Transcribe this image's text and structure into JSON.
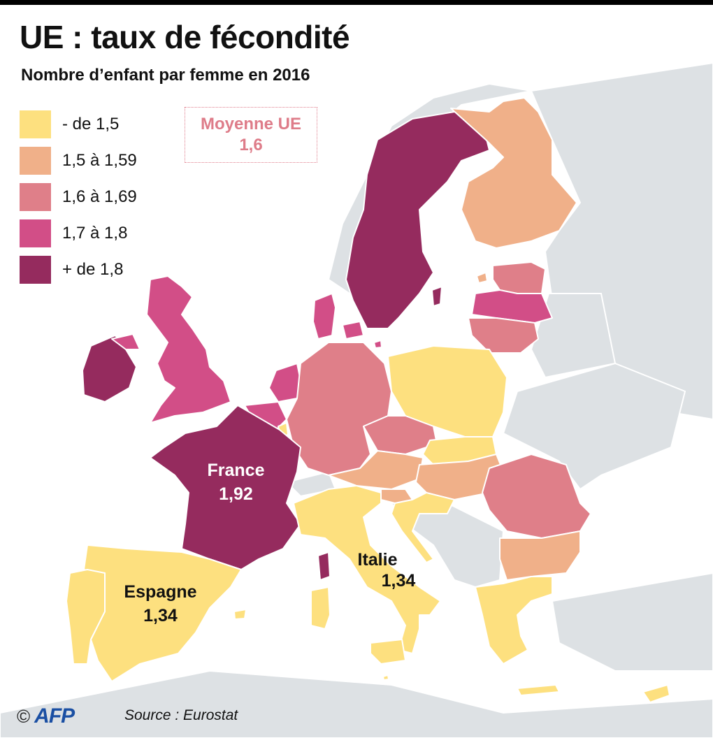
{
  "title": "UE : taux de fécondité",
  "subtitle": "Nombre d’enfant par femme en 2016",
  "legend": [
    {
      "label": "- de 1,5",
      "color": "#fde07f"
    },
    {
      "label": "1,5 à 1,59",
      "color": "#f0b089"
    },
    {
      "label": "1,6 à 1,69",
      "color": "#df7f89"
    },
    {
      "label": "1,7 à 1,8",
      "color": "#d24e87"
    },
    {
      "label": "+  de 1,8",
      "color": "#952b5e"
    }
  ],
  "eu_average": {
    "label": "Moyenne UE",
    "value": "1,6"
  },
  "map_labels": {
    "france": {
      "name": "France",
      "value": "1,92"
    },
    "espagne": {
      "name": "Espagne",
      "value": "1,34"
    },
    "italie": {
      "name": "Italie",
      "value": "1,34"
    }
  },
  "colors": {
    "non_eu": "#dde1e4",
    "border": "#ffffff",
    "sea": "#ffffff"
  },
  "countries": [
    {
      "id": "sweden",
      "category": 4
    },
    {
      "id": "finland",
      "category": 1
    },
    {
      "id": "estonia",
      "category": 2
    },
    {
      "id": "latvia",
      "category": 3
    },
    {
      "id": "lithuania",
      "category": 2
    },
    {
      "id": "ireland",
      "category": 4
    },
    {
      "id": "united-kingdom",
      "category": 3
    },
    {
      "id": "denmark",
      "category": 3
    },
    {
      "id": "netherlands",
      "category": 3
    },
    {
      "id": "belgium",
      "category": 3
    },
    {
      "id": "luxembourg",
      "category": 0
    },
    {
      "id": "germany",
      "category": 2
    },
    {
      "id": "poland",
      "category": 0
    },
    {
      "id": "czechia",
      "category": 2
    },
    {
      "id": "slovakia",
      "category": 0
    },
    {
      "id": "austria",
      "category": 1
    },
    {
      "id": "hungary",
      "category": 1
    },
    {
      "id": "slovenia",
      "category": 1
    },
    {
      "id": "croatia",
      "category": 0
    },
    {
      "id": "romania",
      "category": 2
    },
    {
      "id": "bulgaria",
      "category": 1
    },
    {
      "id": "france",
      "category": 4
    },
    {
      "id": "spain",
      "category": 0
    },
    {
      "id": "portugal",
      "category": 0
    },
    {
      "id": "italy",
      "category": 0
    },
    {
      "id": "sardinia",
      "category": 0
    },
    {
      "id": "sicily",
      "category": 0
    },
    {
      "id": "corsica",
      "category": 4
    },
    {
      "id": "greece",
      "category": 0
    },
    {
      "id": "crete",
      "category": 0
    },
    {
      "id": "cyprus",
      "category": 0
    },
    {
      "id": "malta",
      "category": 0
    },
    {
      "id": "gotland",
      "category": 4
    },
    {
      "id": "aland",
      "category": 1
    },
    {
      "id": "bornholm",
      "category": 3
    },
    {
      "id": "baleares",
      "category": 0
    }
  ],
  "footer": {
    "copyright": "©",
    "logo": "AFP",
    "source": "Source : Eurostat"
  }
}
